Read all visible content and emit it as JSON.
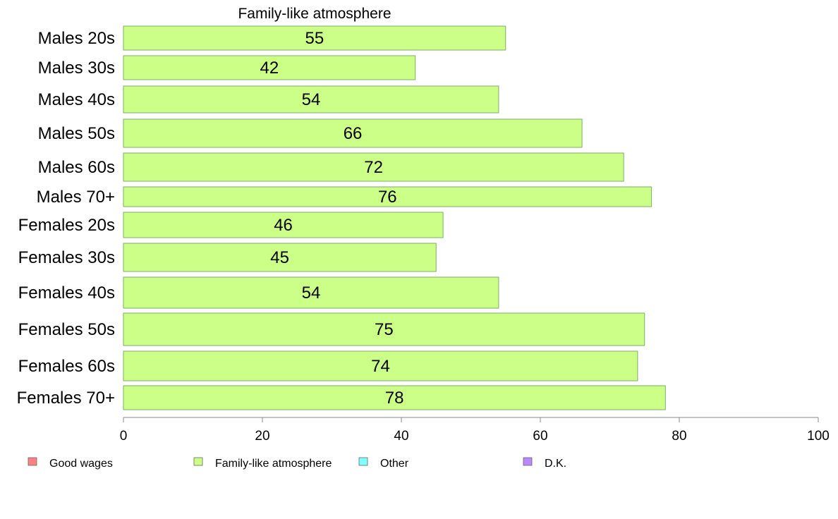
{
  "chart_data": {
    "type": "bar",
    "orientation": "horizontal",
    "title": "Family-like atmosphere",
    "categories": [
      "Males 20s",
      "Males 30s",
      "Males 40s",
      "Males 50s",
      "Males 60s",
      "Males 70+",
      "Females 20s",
      "Females 30s",
      "Females 40s",
      "Females 50s",
      "Females 60s",
      "Females 70+"
    ],
    "series": [
      {
        "name": "Family-like atmosphere",
        "values": [
          55,
          42,
          54,
          66,
          72,
          76,
          46,
          45,
          54,
          75,
          74,
          78
        ],
        "color": "#ccff88"
      }
    ],
    "xlim": [
      0,
      100
    ],
    "xticks": [
      "0",
      "20",
      "40",
      "60",
      "80",
      "100"
    ],
    "grid": false,
    "legend_position": "bottom",
    "legend": [
      {
        "label": "Good wages",
        "color": "#ff8080"
      },
      {
        "label": "Family-like atmosphere",
        "color": "#ccff88"
      },
      {
        "label": "Other",
        "color": "#80ffff"
      },
      {
        "label": "D.K.",
        "color": "#bb88ff"
      }
    ]
  }
}
